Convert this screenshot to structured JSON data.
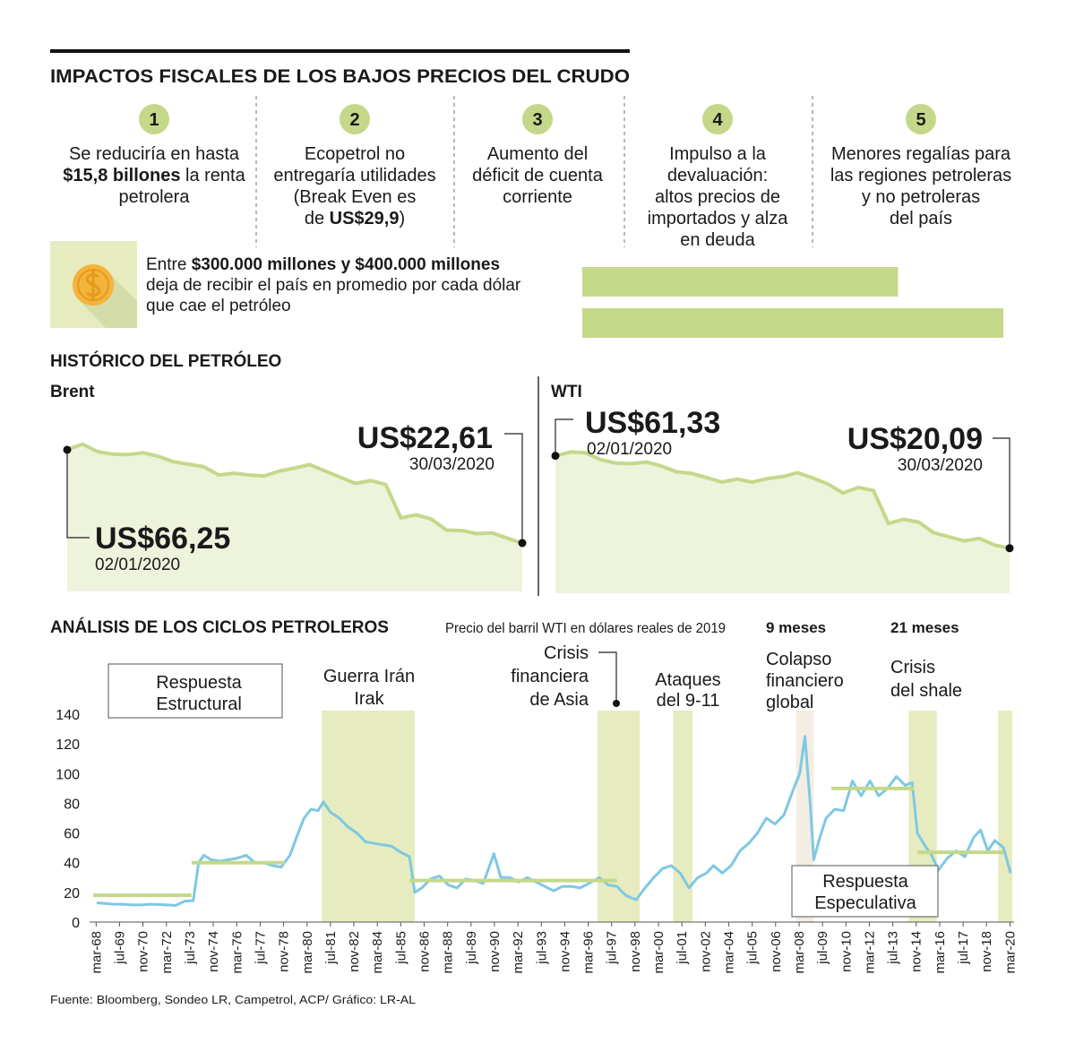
{
  "header": {
    "title": "IMPACTOS FISCALES DE LOS BAJOS PRECIOS DEL CRUDO"
  },
  "items": [
    {
      "number": "1",
      "lines": [
        [
          "Se reduciría en hasta"
        ],
        [
          {
            "bold": "$15,8 billones"
          },
          " la renta"
        ],
        [
          "petrolera"
        ]
      ]
    },
    {
      "number": "2",
      "lines": [
        [
          "Ecopetrol no"
        ],
        [
          "entregaría utilidades"
        ],
        [
          "(Break Even es"
        ],
        [
          "de ",
          {
            "bold": "US$29,9"
          },
          ")"
        ]
      ]
    },
    {
      "number": "3",
      "lines": [
        [
          "Aumento del"
        ],
        [
          "déficit de cuenta"
        ],
        [
          "corriente"
        ]
      ]
    },
    {
      "number": "4",
      "lines": [
        [
          "Impulso a la"
        ],
        [
          "devaluación:"
        ],
        [
          "altos precios de"
        ],
        [
          "importados y alza"
        ],
        [
          "en deuda"
        ]
      ]
    },
    {
      "number": "5",
      "lines": [
        [
          "Menores regalías para"
        ],
        [
          "las regiones petroleras"
        ],
        [
          "y no petroleras"
        ],
        [
          "del país"
        ]
      ]
    }
  ],
  "callout": {
    "lines": [
      [
        "Entre ",
        {
          "bold": "$300.000 millones y $400.000 millones"
        }
      ],
      [
        "deja de recibir el país en promedio por cada dólar"
      ],
      [
        "que cae el petróleo"
      ]
    ]
  },
  "sections": {
    "historic": "HISTÓRICO DEL PETRÓLEO"
  },
  "chart_data": [
    {
      "type": "bar",
      "orientation": "horizontal",
      "values": [
        300000,
        400000
      ],
      "color": "#c5d88a",
      "xlim": [
        0,
        400000
      ]
    },
    {
      "type": "line",
      "title": "Brent",
      "area": true,
      "color": "#c5d88a",
      "ylim": [
        0,
        70
      ],
      "x": [
        "02/01/2020",
        null,
        null,
        null,
        null,
        null,
        null,
        null,
        null,
        null,
        null,
        null,
        null,
        null,
        null,
        null,
        null,
        null,
        null,
        null,
        null,
        null,
        null,
        null,
        null,
        null,
        null,
        null,
        null,
        null,
        "30/03/2020"
      ],
      "values": [
        66.25,
        68.91,
        65.37,
        64.2,
        64.0,
        64.85,
        63.21,
        60.69,
        59.51,
        58.29,
        54.45,
        55.28,
        54.47,
        54.01,
        56.34,
        57.67,
        59.31,
        56.3,
        53.43,
        50.52,
        51.86,
        49.99,
        34.36,
        35.79,
        33.85,
        28.73,
        28.47,
        27.03,
        27.39,
        24.93,
        22.61
      ],
      "value_labels": [
        "US$66,25",
        null,
        null,
        null,
        null,
        null,
        null,
        null,
        null,
        null,
        null,
        null,
        null,
        null,
        null,
        null,
        null,
        null,
        null,
        null,
        null,
        null,
        null,
        null,
        null,
        null,
        null,
        null,
        null,
        null,
        "US$22,61"
      ]
    },
    {
      "type": "line",
      "title": "WTI",
      "area": true,
      "color": "#c5d88a",
      "ylim": [
        0,
        65
      ],
      "x": [
        "02/01/2020",
        null,
        null,
        null,
        null,
        null,
        null,
        null,
        null,
        null,
        null,
        null,
        null,
        null,
        null,
        null,
        null,
        null,
        null,
        null,
        null,
        null,
        null,
        null,
        null,
        null,
        null,
        null,
        null,
        null,
        "30/03/2020"
      ],
      "values": [
        61.33,
        63.05,
        62.7,
        59.56,
        58.08,
        57.81,
        58.54,
        56.74,
        54.19,
        53.48,
        51.56,
        49.61,
        50.95,
        49.57,
        51.17,
        52.05,
        53.78,
        51.43,
        48.73,
        44.76,
        47.18,
        45.9,
        31.13,
        32.98,
        31.73,
        26.95,
        25.22,
        23.36,
        24.49,
        21.51,
        20.09
      ],
      "value_labels": [
        "US$61,33",
        null,
        null,
        null,
        null,
        null,
        null,
        null,
        null,
        null,
        null,
        null,
        null,
        null,
        null,
        null,
        null,
        null,
        null,
        null,
        null,
        null,
        null,
        null,
        null,
        null,
        null,
        null,
        null,
        null,
        "US$20,09"
      ]
    },
    {
      "type": "cycles",
      "title": "ANÁLISIS DE LOS CICLOS PETROLEROS",
      "subtitle": "Precio del barril WTI en dólares reales de 2019",
      "color": "#7ec8e3",
      "xlim": [
        1968,
        2020.4
      ],
      "ylim": [
        0,
        140
      ],
      "yticks": [
        0,
        20,
        40,
        60,
        80,
        100,
        120,
        140
      ],
      "xticks": [
        {
          "value": 1968.17,
          "label": "mar-68"
        },
        {
          "value": 1969.5,
          "label": "jul-69"
        },
        {
          "value": 1970.83,
          "label": "nov-70"
        },
        {
          "value": 1972.17,
          "label": "mar-72"
        },
        {
          "value": 1973.5,
          "label": "jul-73"
        },
        {
          "value": 1974.83,
          "label": "nov-74"
        },
        {
          "value": 1976.17,
          "label": "mar-76"
        },
        {
          "value": 1977.5,
          "label": "jul-77"
        },
        {
          "value": 1978.83,
          "label": "nov-78"
        },
        {
          "value": 1980.17,
          "label": "mar-80"
        },
        {
          "value": 1981.5,
          "label": "jul-81"
        },
        {
          "value": 1982.83,
          "label": "nov-82"
        },
        {
          "value": 1984.17,
          "label": "mar-84"
        },
        {
          "value": 1985.5,
          "label": "jul-85"
        },
        {
          "value": 1986.83,
          "label": "nov-86"
        },
        {
          "value": 1988.17,
          "label": "mar-88"
        },
        {
          "value": 1989.5,
          "label": "jul-89"
        },
        {
          "value": 1990.83,
          "label": "nov-90"
        },
        {
          "value": 1992.17,
          "label": "mar-92"
        },
        {
          "value": 1993.5,
          "label": "jul-93"
        },
        {
          "value": 1994.83,
          "label": "nov-94"
        },
        {
          "value": 1996.17,
          "label": "mar-96"
        },
        {
          "value": 1997.5,
          "label": "jul-97"
        },
        {
          "value": 1998.83,
          "label": "nov-98"
        },
        {
          "value": 2000.17,
          "label": "mar-00"
        },
        {
          "value": 2001.5,
          "label": "jul-01"
        },
        {
          "value": 2002.83,
          "label": "nov-02"
        },
        {
          "value": 2004.17,
          "label": "mar-04"
        },
        {
          "value": 2005.5,
          "label": "jul-05"
        },
        {
          "value": 2006.83,
          "label": "nov-06"
        },
        {
          "value": 2008.17,
          "label": "mar-08"
        },
        {
          "value": 2009.5,
          "label": "jul-09"
        },
        {
          "value": 2010.83,
          "label": "nov-10"
        },
        {
          "value": 2012.17,
          "label": "mar-12"
        },
        {
          "value": 2013.5,
          "label": "jul-13"
        },
        {
          "value": 2014.83,
          "label": "nov-14"
        },
        {
          "value": 2016.17,
          "label": "mar-16"
        },
        {
          "value": 2017.5,
          "label": "jul-17"
        },
        {
          "value": 2018.83,
          "label": "nov-18"
        },
        {
          "value": 2020.17,
          "label": "mar-20"
        }
      ],
      "x": [
        1968.2,
        1968.7,
        1969.2,
        1969.7,
        1970.2,
        1970.7,
        1971.2,
        1971.7,
        1972.2,
        1972.7,
        1973.2,
        1973.7,
        1974.0,
        1974.3,
        1974.7,
        1975.2,
        1975.7,
        1976.2,
        1976.7,
        1977.2,
        1977.7,
        1978.2,
        1978.7,
        1979.2,
        1979.6,
        1980.0,
        1980.4,
        1980.8,
        1981.1,
        1981.5,
        1982.0,
        1982.5,
        1983.0,
        1983.5,
        1984.0,
        1984.5,
        1985.0,
        1985.5,
        1986.0,
        1986.3,
        1986.7,
        1987.2,
        1987.7,
        1988.2,
        1988.7,
        1989.2,
        1989.7,
        1990.2,
        1990.8,
        1991.2,
        1991.7,
        1992.2,
        1992.7,
        1993.2,
        1993.7,
        1994.2,
        1994.7,
        1995.2,
        1995.7,
        1996.2,
        1996.8,
        1997.3,
        1997.8,
        1998.3,
        1998.9,
        1999.4,
        1999.9,
        2000.4,
        2000.9,
        2001.4,
        2001.9,
        2002.4,
        2002.9,
        2003.3,
        2003.8,
        2004.3,
        2004.8,
        2005.3,
        2005.8,
        2006.3,
        2006.8,
        2007.3,
        2007.8,
        2008.2,
        2008.5,
        2008.8,
        2009.0,
        2009.3,
        2009.7,
        2010.2,
        2010.7,
        2011.2,
        2011.7,
        2012.2,
        2012.7,
        2013.2,
        2013.7,
        2014.2,
        2014.6,
        2014.9,
        2015.3,
        2015.7,
        2016.1,
        2016.6,
        2017.1,
        2017.6,
        2018.1,
        2018.5,
        2018.9,
        2019.3,
        2019.8,
        2020.2
      ],
      "values": [
        13,
        12.5,
        12,
        12,
        11.5,
        11.5,
        12,
        11.8,
        11.5,
        11.2,
        14,
        14.5,
        40,
        45,
        42,
        41,
        42,
        43,
        45,
        40,
        40,
        38,
        37,
        45,
        58,
        70,
        76,
        75,
        81,
        74,
        70,
        64,
        60,
        54,
        53,
        52,
        51,
        47,
        44,
        20,
        23,
        29,
        31,
        25,
        23,
        29,
        28,
        26,
        46,
        30,
        30,
        27,
        30,
        27,
        24,
        21,
        24,
        24,
        23,
        26,
        30,
        25,
        24,
        18,
        15,
        23,
        30,
        36,
        38,
        33,
        23,
        30,
        33,
        38,
        33,
        38,
        48,
        53,
        60,
        70,
        66,
        72,
        88,
        100,
        125,
        80,
        42,
        55,
        70,
        76,
        75,
        95,
        85,
        95,
        85,
        90,
        98,
        92,
        94,
        60,
        52,
        45,
        35,
        43,
        48,
        44,
        57,
        62,
        48,
        55,
        50,
        33
      ],
      "averages": [
        {
          "x": [
            1968,
            1973.6
          ],
          "value": 18
        },
        {
          "x": [
            1973.6,
            1978.9
          ],
          "value": 40
        },
        {
          "x": [
            1986.0,
            1997.8
          ],
          "value": 28
        },
        {
          "x": [
            2010.0,
            2014.7
          ],
          "value": 90
        },
        {
          "x": [
            2014.9,
            2019.8
          ],
          "value": 47
        }
      ],
      "periods": [
        {
          "x": [
            1981.0,
            1986.3
          ],
          "color": "#e6ecbf",
          "lines": [
            "Guerra Irán",
            "Irak"
          ]
        },
        {
          "x": [
            1996.7,
            1999.1
          ],
          "color": "#e6ecbf",
          "lines": [
            "Crisis",
            "financiera",
            "de Asia"
          ]
        },
        {
          "x": [
            2001.0,
            2002.1
          ],
          "color": "#e6ecbf",
          "lines": [
            "Ataques",
            "del 9-11"
          ]
        },
        {
          "x": [
            2008.0,
            2009.0
          ],
          "color": "#f3ede2",
          "lines": [
            "Colapso",
            "financiero",
            "global"
          ],
          "duration": "9 meses"
        },
        {
          "x": [
            2014.4,
            2016.0
          ],
          "color": "#e6ecbf",
          "lines": [
            "Crisis",
            "del shale"
          ],
          "duration": "21 meses"
        },
        {
          "x": [
            2019.5,
            2020.3
          ],
          "color": "#e6ecbf"
        }
      ],
      "annotations": [
        {
          "lines": [
            "Respuesta",
            "Estructural"
          ]
        },
        {
          "lines": [
            "Respuesta",
            "Especulativa"
          ]
        }
      ]
    }
  ],
  "source": "Fuente: Bloomberg, Sondeo LR, Campetrol, ACP/ Gráfico: LR-AL"
}
